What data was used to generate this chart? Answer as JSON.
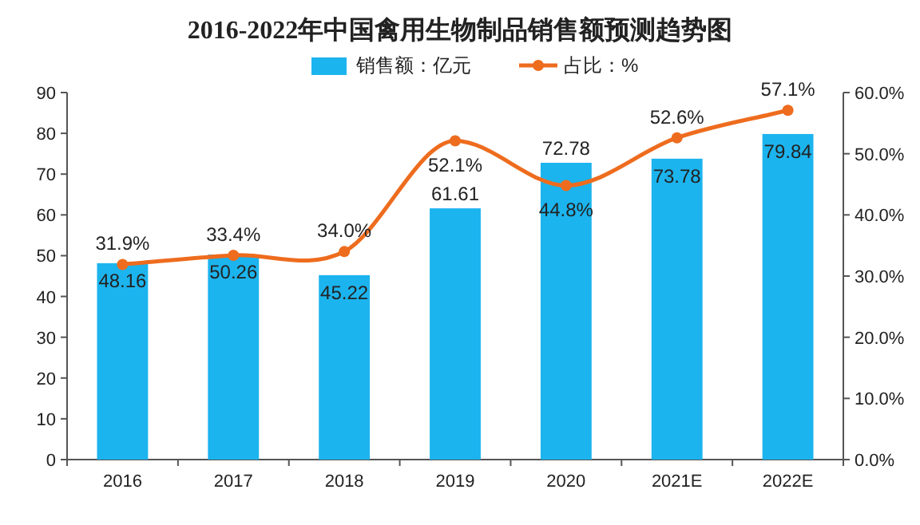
{
  "chart_data": {
    "type": "bar",
    "title": "2016-2022年中国禽用生物制品销售额预测趋势图",
    "categories": [
      "2016",
      "2017",
      "2018",
      "2019",
      "2020",
      "2021E",
      "2022E"
    ],
    "series": [
      {
        "name": "销售额：亿元",
        "color": "#1cb4ee",
        "values": [
          48.16,
          50.26,
          45.22,
          61.61,
          72.78,
          73.78,
          79.84
        ],
        "value_labels": [
          "48.16",
          "50.26",
          "45.22",
          "61.61",
          "72.78",
          "73.78",
          "79.84"
        ]
      },
      {
        "name": "占比：%",
        "type": "line",
        "axis": "y2",
        "color": "#ee6c1e",
        "values": [
          31.9,
          33.4,
          34.0,
          52.1,
          44.8,
          52.6,
          57.1
        ],
        "value_labels": [
          "31.9%",
          "33.4%",
          "34.0%",
          "52.1%",
          "44.8%",
          "52.6%",
          "57.1%"
        ]
      }
    ],
    "ylim": [
      0,
      90
    ],
    "yticks": [
      0,
      10,
      20,
      30,
      40,
      50,
      60,
      70,
      80,
      90
    ],
    "y2lim": [
      0,
      60
    ],
    "y2ticks": [
      {
        "value": 0,
        "label": "0.0%"
      },
      {
        "value": 10,
        "label": "10.0%"
      },
      {
        "value": 20,
        "label": "20.0%"
      },
      {
        "value": 30,
        "label": "30.0%"
      },
      {
        "value": 40,
        "label": "40.0%"
      },
      {
        "value": 50,
        "label": "50.0%"
      },
      {
        "value": 60,
        "label": "60.0%"
      }
    ],
    "grid": false,
    "legend": "top",
    "marker": "circle",
    "line_style": "solid"
  }
}
